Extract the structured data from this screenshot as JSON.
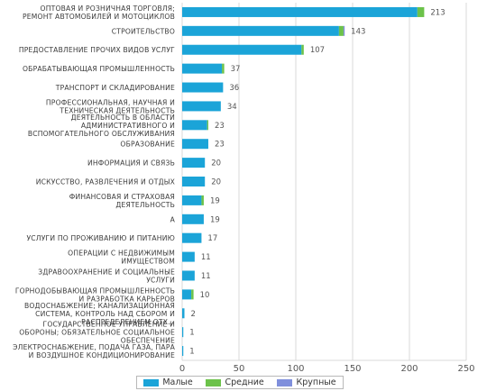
{
  "chart_data": {
    "type": "bar",
    "orientation": "horizontal",
    "stacked": true,
    "categories": [
      "ОПТОВАЯ И РОЗНИЧНАЯ ТОРГОВЛЯ; РЕМОНТ АВТОМОБИЛЕЙ И МОТОЦИКЛОВ",
      "СТРОИТЕЛЬСТВО",
      "ПРЕДОСТАВЛЕНИЕ ПРОЧИХ ВИДОВ УСЛУГ",
      "ОБРАБАТЫВАЮЩАЯ ПРОМЫШЛЕННОСТЬ",
      "ТРАНСПОРТ И СКЛАДИРОВАНИЕ",
      "ПРОФЕССИОНАЛЬНАЯ, НАУЧНАЯ И ТЕХНИЧЕСКАЯ ДЕЯТЕЛЬНОСТЬ",
      "ДЕЯТЕЛЬНОСТЬ В ОБЛАСТИ АДМИНИСТРАТИВНОГО И ВСПОМОГАТЕЛЬНОГО ОБСЛУЖИВАНИЯ",
      "ОБРАЗОВАНИЕ",
      "ИНФОРМАЦИЯ И СВЯЗЬ",
      "ИСКУССТВО, РАЗВЛЕЧЕНИЯ И ОТДЫХ",
      "ФИНАНСОВАЯ И СТРАХОВАЯ ДЕЯТЕЛЬНОСТЬ",
      "A",
      "УСЛУГИ ПО ПРОЖИВАНИЮ И ПИТАНИЮ",
      "ОПЕРАЦИИ С НЕДВИЖИМЫМ ИМУЩЕСТВОМ",
      "ЗДРАВООХРАНЕНИЕ И СОЦИАЛЬНЫЕ УСЛУГИ",
      "ГОРНОДОБЫВАЮЩАЯ ПРОМЫШЛЕННОСТЬ И РАЗРАБОТКА КАРЬЕРОВ",
      "ВОДОСНАБЖЕНИЕ; КАНАЛИЗАЦИОННАЯ СИСТЕМА, КОНТРОЛЬ НАД СБОРОМ И РАСПРЕДЕЛЕНИЕМ ОТХ...",
      "ГОСУДАРСТВЕННОЕ УПРАВЛЕНИЕ И ОБОРОНА; ОБЯЗАТЕЛЬНОЕ СОЦИАЛЬНОЕ ОБЕСПЕЧЕНИЕ",
      "ЭЛЕКТРОСНАБЖЕНИЕ, ПОДАЧА ГАЗА, ПАРА И ВОЗДУШНОЕ КОНДИЦИОНИРОВАНИЕ"
    ],
    "category_lines": [
      [
        "ОПТОВАЯ И РОЗНИЧНАЯ ТОРГОВЛЯ;",
        "РЕМОНТ АВТОМОБИЛЕЙ И МОТОЦИКЛОВ"
      ],
      [
        "СТРОИТЕЛЬСТВО"
      ],
      [
        "ПРЕДОСТАВЛЕНИЕ ПРОЧИХ ВИДОВ УСЛУГ"
      ],
      [
        "ОБРАБАТЫВАЮЩАЯ ПРОМЫШЛЕННОСТЬ"
      ],
      [
        "ТРАНСПОРТ И СКЛАДИРОВАНИЕ"
      ],
      [
        "ПРОФЕССИОНАЛЬНАЯ, НАУЧНАЯ И",
        "ТЕХНИЧЕСКАЯ ДЕЯТЕЛЬНОСТЬ"
      ],
      [
        "ДЕЯТЕЛЬНОСТЬ В ОБЛАСТИ",
        "АДМИНИСТРАТИВНОГО И",
        "ВСПОМОГАТЕЛЬНОГО ОБСЛУЖИВАНИЯ"
      ],
      [
        "ОБРАЗОВАНИЕ"
      ],
      [
        "ИНФОРМАЦИЯ И СВЯЗЬ"
      ],
      [
        "ИСКУССТВО, РАЗВЛЕЧЕНИЯ И ОТДЫХ"
      ],
      [
        "ФИНАНСОВАЯ И СТРАХОВАЯ",
        "ДЕЯТЕЛЬНОСТЬ"
      ],
      [
        "A"
      ],
      [
        "УСЛУГИ ПО ПРОЖИВАНИЮ И ПИТАНИЮ"
      ],
      [
        "ОПЕРАЦИИ С НЕДВИЖИМЫМ",
        "ИМУЩЕСТВОМ"
      ],
      [
        "ЗДРАВООХРАНЕНИЕ И СОЦИАЛЬНЫЕ",
        "УСЛУГИ"
      ],
      [
        "ГОРНОДОБЫВАЮЩАЯ ПРОМЫШЛЕННОСТЬ",
        "И РАЗРАБОТКА КАРЬЕРОВ"
      ],
      [
        "ВОДОСНАБЖЕНИЕ; КАНАЛИЗАЦИОННАЯ",
        "СИСТЕМА, КОНТРОЛЬ НАД СБОРОМ И",
        "РАСПРЕДЕЛЕНИЕМ ОТХ..."
      ],
      [
        "ГОСУДАРСТВЕННОЕ УПРАВЛЕНИЕ И",
        "ОБОРОНЫ; ОБЯЗАТЕЛЬНОЕ СОЦИАЛЬНОЕ",
        "ОБЕСПЕЧЕНИЕ"
      ],
      [
        "ЭЛЕКТРОСНАБЖЕНИЕ, ПОДАЧА ГАЗА, ПАРА",
        "И ВОЗДУШНОЕ КОНДИЦИОНИРОВАНИЕ"
      ]
    ],
    "series": [
      {
        "name": "Малые",
        "color": "#1ba4d8",
        "values": [
          207,
          138,
          105,
          35,
          36,
          34,
          22,
          23,
          20,
          20,
          17,
          19,
          17,
          11,
          11,
          8,
          2,
          1,
          1
        ]
      },
      {
        "name": "Средние",
        "color": "#6cc24a",
        "values": [
          6,
          4,
          2,
          2,
          0,
          0,
          1,
          0,
          0,
          0,
          2,
          0,
          0,
          0,
          0,
          2,
          0,
          0,
          0
        ]
      },
      {
        "name": "Крупные",
        "color": "#7f8fdc",
        "values": [
          0,
          1,
          0,
          0,
          0,
          0,
          0,
          0,
          0,
          0,
          0,
          0,
          0,
          0,
          0,
          0,
          0,
          0,
          0
        ]
      }
    ],
    "totals": [
      "213",
      "143",
      "107",
      "37",
      "36",
      "34",
      "23",
      "23",
      "20",
      "20",
      "19",
      "19",
      "17",
      "11",
      "11",
      "10",
      "2",
      "1",
      "1"
    ],
    "xlim": [
      0,
      250
    ],
    "xticks": [
      "0",
      "50",
      "100",
      "150",
      "200",
      "250"
    ],
    "grid": true,
    "legend_position": "bottom"
  },
  "legend": {
    "small": "Малые",
    "medium": "Средние",
    "large": "Крупные",
    "small_color": "#1ba4d8",
    "medium_color": "#6cc24a",
    "large_color": "#7f8fdc"
  }
}
